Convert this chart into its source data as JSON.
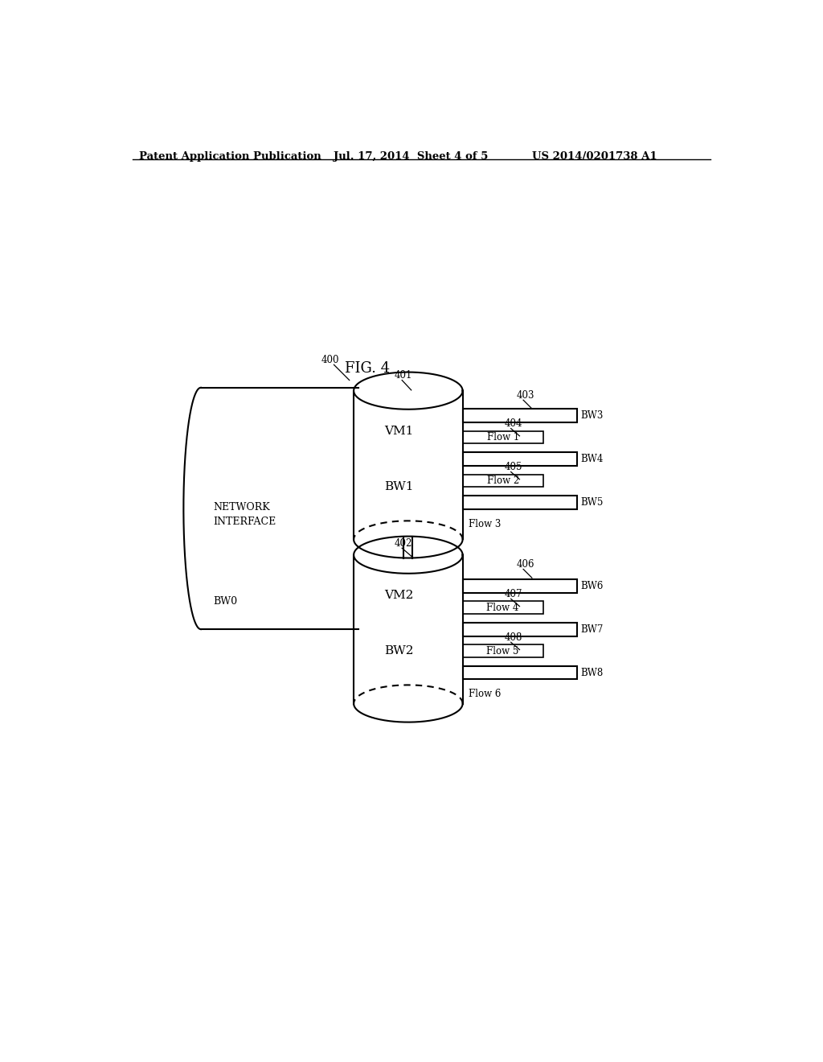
{
  "fig_label": "FIG. 4",
  "header_left": "Patent Application Publication",
  "header_mid": "Jul. 17, 2014  Sheet 4 of 5",
  "header_right": "US 2014/0201738 A1",
  "bg_color": "#ffffff",
  "line_color": "#000000",
  "label_400": "400",
  "label_401": "401",
  "label_402": "402",
  "label_403": "403",
  "label_404": "404",
  "label_405": "405",
  "label_406": "406",
  "label_407": "407",
  "label_408": "408",
  "label_BW3": "BW3",
  "label_BW4": "BW4",
  "label_BW5": "BW5",
  "label_BW6": "BW6",
  "label_BW7": "BW7",
  "label_BW8": "BW8",
  "label_VM1": "VM1",
  "label_VM2": "VM2",
  "label_BW1": "BW1",
  "label_BW2": "BW2",
  "label_BW0": "BW0",
  "label_Flow1": "Flow 1",
  "label_Flow2": "Flow 2",
  "label_Flow3": "Flow 3",
  "label_Flow4": "Flow 4",
  "label_Flow5": "Flow 5",
  "label_Flow6": "Flow 6",
  "label_network": "NETWORK\nINTERFACE"
}
